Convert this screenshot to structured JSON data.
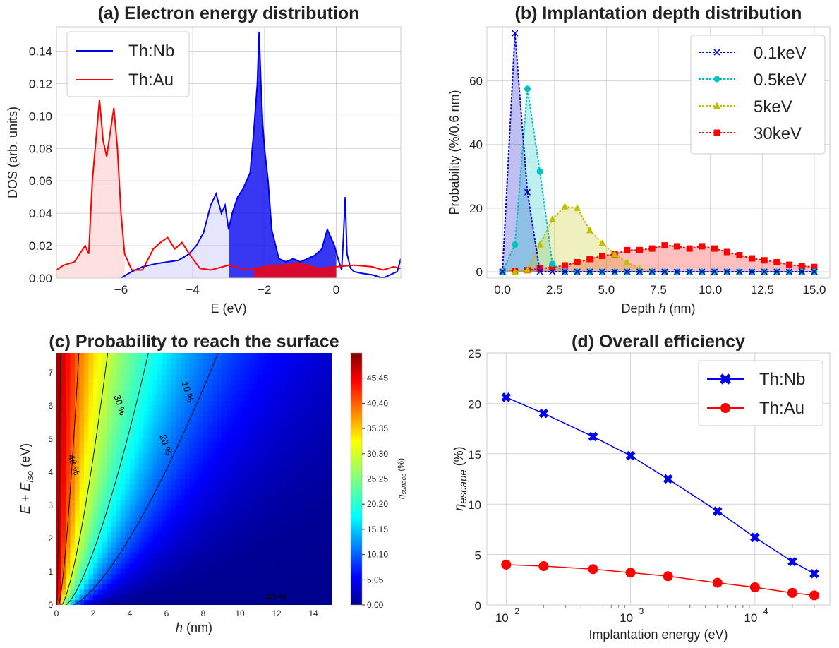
{
  "colors": {
    "nb": "#0000ee",
    "au": "#ff0000",
    "c01": "#0000cc",
    "c05": "#00bfbf",
    "c5": "#bfbf00",
    "c30": "#ff0000"
  },
  "chart_data": [
    {
      "id": "a",
      "type": "area",
      "title": "(a) Electron energy distribution",
      "xlabel": "E (eV)",
      "ylabel": "DOS (arb. units)",
      "xlim": [
        -7.8,
        1.8
      ],
      "ylim": [
        0,
        0.155
      ],
      "xticks": [
        -6,
        -4,
        -2,
        0
      ],
      "xtick_labels": [
        "−6",
        "−4",
        "−2",
        "0"
      ],
      "yticks": [
        0,
        0.02,
        0.04,
        0.06,
        0.08,
        0.1,
        0.12,
        0.14
      ],
      "ytick_labels": [
        "0.00",
        "0.02",
        "0.04",
        "0.06",
        "0.08",
        "0.10",
        "0.12",
        "0.14"
      ],
      "legend": [
        "Th:Nb",
        "Th:Au"
      ],
      "series": [
        {
          "name": "Th:Nb",
          "x": [
            -6.0,
            -5.7,
            -5.4,
            -5.0,
            -4.7,
            -4.4,
            -4.1,
            -3.9,
            -3.7,
            -3.5,
            -3.35,
            -3.2,
            -3.1,
            -3.0,
            -2.9,
            -2.75,
            -2.6,
            -2.5,
            -2.4,
            -2.3,
            -2.2,
            -2.15,
            -2.1,
            -2.05,
            -2.0,
            -1.9,
            -1.8,
            -1.6,
            -1.4,
            -1.2,
            -1.0,
            -0.8,
            -0.6,
            -0.4,
            -0.25,
            -0.15,
            -0.05,
            0.05,
            0.15,
            0.2,
            0.25,
            0.3,
            0.4,
            0.5,
            0.7,
            1.0,
            1.3,
            1.5,
            1.7,
            1.8
          ],
          "y": [
            0.0,
            0.004,
            0.007,
            0.009,
            0.01,
            0.011,
            0.015,
            0.02,
            0.028,
            0.045,
            0.052,
            0.04,
            0.045,
            0.03,
            0.04,
            0.05,
            0.055,
            0.06,
            0.065,
            0.09,
            0.12,
            0.152,
            0.12,
            0.095,
            0.08,
            0.06,
            0.03,
            0.012,
            0.01,
            0.012,
            0.01,
            0.012,
            0.014,
            0.018,
            0.03,
            0.025,
            0.02,
            0.012,
            0.005,
            0.025,
            0.05,
            0.015,
            0.006,
            0.004,
            0.003,
            0.002,
            0.0,
            0.002,
            0.004,
            0.012
          ]
        },
        {
          "name": "Th:Au",
          "x": [
            -7.8,
            -7.6,
            -7.3,
            -7.0,
            -6.9,
            -6.8,
            -6.7,
            -6.6,
            -6.5,
            -6.4,
            -6.3,
            -6.2,
            -6.1,
            -6.0,
            -5.9,
            -5.7,
            -5.4,
            -5.1,
            -4.9,
            -4.7,
            -4.5,
            -4.3,
            -4.1,
            -3.8,
            -3.5,
            -3.0,
            -2.5,
            -2.0,
            -1.5,
            -1.0,
            -0.5,
            0.0,
            0.5,
            1.0,
            1.3,
            1.6,
            1.8
          ],
          "y": [
            0.005,
            0.008,
            0.01,
            0.02,
            0.015,
            0.06,
            0.085,
            0.11,
            0.085,
            0.075,
            0.09,
            0.105,
            0.08,
            0.04,
            0.015,
            0.005,
            0.005,
            0.018,
            0.022,
            0.025,
            0.018,
            0.022,
            0.015,
            0.006,
            0.005,
            0.008,
            0.005,
            0.007,
            0.008,
            0.009,
            0.006,
            0.007,
            0.008,
            0.007,
            0.005,
            0.007,
            0.006
          ]
        }
      ],
      "shaded_bands": [
        {
          "series": "Th:Au",
          "from": -7.8,
          "to": -5.9,
          "fill": "light"
        },
        {
          "series": "Th:Nb",
          "from": -6.0,
          "to": -3.0,
          "fill": "light"
        },
        {
          "series": "Th:Nb",
          "from": -3.0,
          "to": 0.0,
          "fill": "solid"
        },
        {
          "series": "Th:Au",
          "from": -2.3,
          "to": 0.0,
          "fill": "solid"
        }
      ]
    },
    {
      "id": "b",
      "type": "line",
      "title": "(b) Implantation depth distribution",
      "xlabel": "Depth h (nm)",
      "ylabel": "Probability (%/0.6 nm)",
      "xlim": [
        -0.75,
        15.75
      ],
      "ylim": [
        -2,
        77
      ],
      "xticks": [
        0,
        2.5,
        5,
        7.5,
        10,
        12.5,
        15
      ],
      "xtick_labels": [
        "0.0",
        "2.5",
        "5.0",
        "7.5",
        "10.0",
        "12.5",
        "15.0"
      ],
      "yticks": [
        0,
        20,
        40,
        60
      ],
      "ytick_labels": [
        "0",
        "20",
        "40",
        "60"
      ],
      "legend": [
        "0.1keV",
        "0.5keV",
        "5keV",
        "30keV"
      ],
      "series": [
        {
          "name": "0.1keV",
          "marker": "x",
          "x": [
            0,
            0.6,
            1.2,
            1.8,
            2.4,
            3.0,
            3.6,
            4.2,
            4.8,
            5.4,
            6.0,
            6.6,
            7.2,
            7.8,
            8.4,
            9.0,
            9.6,
            10.2,
            10.8,
            11.4,
            12.0,
            12.6,
            13.2,
            13.8,
            14.4,
            15.0
          ],
          "y": [
            0,
            75,
            25,
            0,
            0,
            0,
            0,
            0,
            0,
            0,
            0,
            0,
            0,
            0,
            0,
            0,
            0,
            0,
            0,
            0,
            0,
            0,
            0,
            0,
            0,
            0
          ]
        },
        {
          "name": "0.5keV",
          "marker": "o",
          "x": [
            0,
            0.6,
            1.2,
            1.8,
            2.4,
            3.0,
            3.6,
            4.2,
            4.8,
            5.4,
            6.0,
            6.6,
            7.2,
            7.8,
            8.4,
            9.0,
            9.6,
            10.2,
            10.8,
            11.4,
            12.0,
            12.6,
            13.2,
            13.8,
            14.4,
            15.0
          ],
          "y": [
            0,
            8.5,
            57.5,
            31.5,
            2.5,
            0,
            0,
            0,
            0,
            0,
            0,
            0,
            0,
            0,
            0,
            0,
            0,
            0,
            0,
            0,
            0,
            0,
            0,
            0,
            0,
            0
          ]
        },
        {
          "name": "5keV",
          "marker": "^",
          "x": [
            0,
            0.6,
            1.2,
            1.8,
            2.4,
            3.0,
            3.6,
            4.2,
            4.8,
            5.4,
            6.0,
            6.6,
            7.2,
            7.8,
            8.4,
            9.0,
            9.6,
            10.2,
            10.8,
            11.4,
            12.0,
            12.6,
            13.2,
            13.8,
            14.4,
            15.0
          ],
          "y": [
            0,
            0,
            0.5,
            8.5,
            16.5,
            20.5,
            20,
            13,
            9,
            5.5,
            3,
            1,
            0.3,
            0,
            0,
            0,
            0,
            0,
            0,
            0,
            0,
            0,
            0,
            0,
            0,
            0
          ]
        },
        {
          "name": "30keV",
          "marker": "s",
          "x": [
            0,
            0.6,
            1.2,
            1.8,
            2.4,
            3.0,
            3.6,
            4.2,
            4.8,
            5.4,
            6.0,
            6.6,
            7.2,
            7.8,
            8.4,
            9.0,
            9.6,
            10.2,
            10.8,
            11.4,
            12.0,
            12.6,
            13.2,
            13.8,
            14.4,
            15.0
          ],
          "y": [
            0,
            0.2,
            0.5,
            1.0,
            1.4,
            2.0,
            3.0,
            4.0,
            5.0,
            5.5,
            6.8,
            6.8,
            7.3,
            8.3,
            8.0,
            7.3,
            8.0,
            7.3,
            6.2,
            5.2,
            4.2,
            3.6,
            3.0,
            2.2,
            1.8,
            1.5
          ]
        }
      ]
    },
    {
      "id": "c",
      "type": "heatmap",
      "title": "(c) Probability to reach the surface",
      "xlabel": "h (nm)",
      "ylabel": "E + E_iso (eV)",
      "xlim": [
        0,
        15
      ],
      "ylim": [
        0,
        7.6
      ],
      "xticks": [
        0,
        2,
        4,
        6,
        8,
        10,
        12,
        14
      ],
      "xtick_labels": [
        "0",
        "2",
        "4",
        "6",
        "8",
        "10",
        "12",
        "14"
      ],
      "yticks": [
        0,
        1,
        2,
        3,
        4,
        5,
        6,
        7
      ],
      "ytick_labels": [
        "0",
        "1",
        "2",
        "3",
        "4",
        "5",
        "6",
        "7"
      ],
      "colorbar_label": "η_surface (%)",
      "colorbar_ticks": [
        "45.45",
        "40.40",
        "35.35",
        "30.30",
        "25.25",
        "20.20",
        "15.15",
        "10.10",
        "5.05",
        "0.00"
      ],
      "colorbar_range": [
        0,
        50.5
      ],
      "contours": [
        {
          "label": "48 %",
          "level": 48
        },
        {
          "label": "40 %",
          "level": 40
        },
        {
          "label": "30 %",
          "level": 30
        },
        {
          "label": "20 %",
          "level": 20
        },
        {
          "label": "10 %",
          "level": 10
        }
      ]
    },
    {
      "id": "d",
      "type": "line",
      "title": "(d) Overall efficiency",
      "xlabel": "Implantation energy (eV)",
      "ylabel": "η_escape (%)",
      "xscale": "log",
      "xlim": [
        70,
        40000
      ],
      "ylim": [
        0,
        25
      ],
      "yticks": [
        0,
        5,
        10,
        15,
        20,
        25
      ],
      "ytick_labels": [
        "0",
        "5",
        "10",
        "15",
        "20",
        "25"
      ],
      "xtick_labels": [
        "10",
        "10",
        "10"
      ],
      "xtick_exponents": [
        "2",
        "3",
        "4"
      ],
      "legend": [
        "Th:Nb",
        "Th:Au"
      ],
      "series": [
        {
          "name": "Th:Nb",
          "marker": "X",
          "x": [
            100,
            200,
            500,
            1000,
            2000,
            5000,
            10000,
            20000,
            30000
          ],
          "y": [
            20.6,
            19.0,
            16.7,
            14.8,
            12.5,
            9.3,
            6.7,
            4.3,
            3.1
          ]
        },
        {
          "name": "Th:Au",
          "marker": "o",
          "x": [
            100,
            200,
            500,
            1000,
            2000,
            5000,
            10000,
            20000,
            30000
          ],
          "y": [
            4.0,
            3.85,
            3.55,
            3.2,
            2.85,
            2.2,
            1.75,
            1.2,
            0.95
          ]
        }
      ]
    }
  ]
}
